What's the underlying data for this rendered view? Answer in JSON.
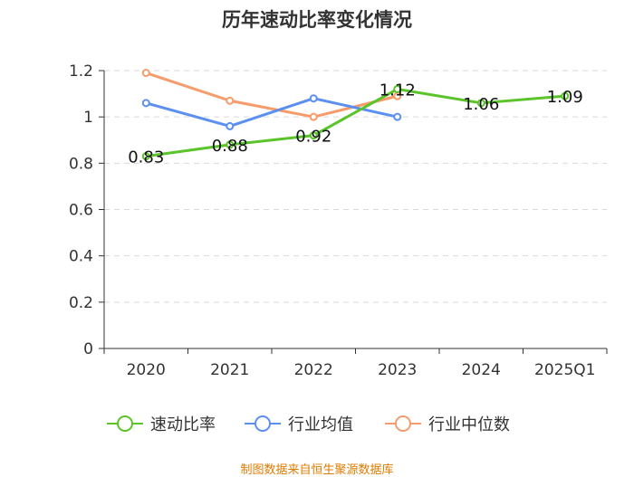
{
  "title": "历年速动比率变化情况",
  "source": "制图数据来自恒生聚源数据库",
  "chart_data": {
    "type": "line",
    "categories": [
      "2020",
      "2021",
      "2022",
      "2023",
      "2024",
      "2025Q1"
    ],
    "ylim": [
      0,
      1.2
    ],
    "yticks": [
      0,
      0.2,
      0.4,
      0.6,
      0.8,
      1,
      1.2
    ],
    "ytick_labels": [
      "0",
      "0.2",
      "0.4",
      "0.6",
      "0.8",
      "1",
      "1.2"
    ],
    "grid": true,
    "legend_position": "bottom",
    "series": [
      {
        "name": "速动比率",
        "color": "#5ac42a",
        "values": [
          0.83,
          0.88,
          0.92,
          1.12,
          1.06,
          1.09
        ],
        "labels": [
          "0.83",
          "0.88",
          "0.92",
          "1.12",
          "1.06",
          "1.09"
        ]
      },
      {
        "name": "行业均值",
        "color": "#5b8ff0",
        "values": [
          1.06,
          0.96,
          1.08,
          1.0,
          null,
          null
        ]
      },
      {
        "name": "行业中位数",
        "color": "#f79b6b",
        "values": [
          1.19,
          1.07,
          1.0,
          1.09,
          null,
          null
        ]
      }
    ]
  }
}
